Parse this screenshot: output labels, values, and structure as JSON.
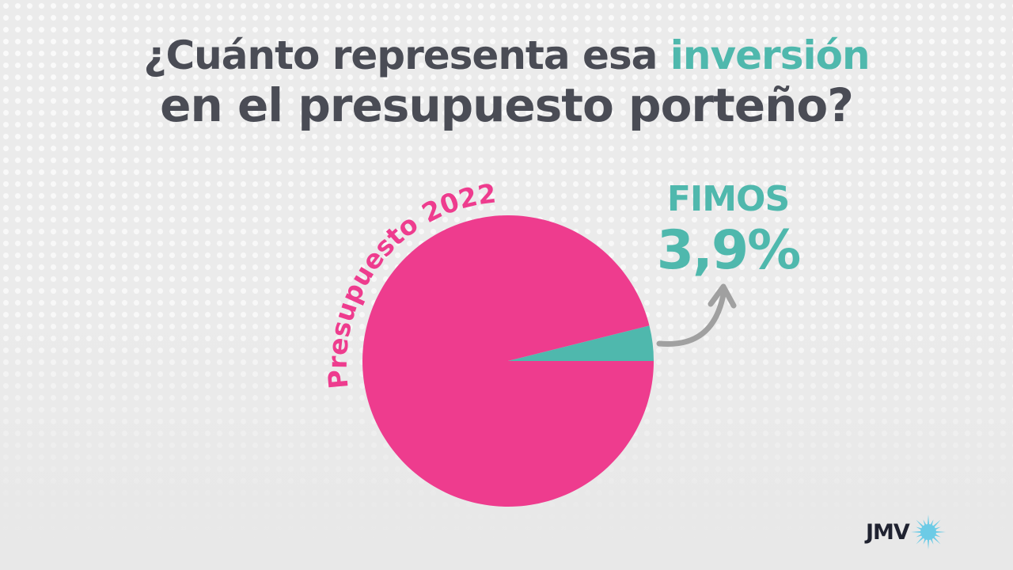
{
  "title": {
    "line1_prefix": "¿Cuánto representa esa ",
    "line1_highlight": "inversión",
    "line2": "en el presupuesto porteño?"
  },
  "colors": {
    "title": "#4a4c55",
    "highlight": "#4fb8ad",
    "pink": "#ee3c8e",
    "teal": "#4fb8ad",
    "arrow": "#a0a0a0",
    "logo_sun": "#6ccbe6"
  },
  "chart_data": {
    "type": "pie",
    "unit": "%",
    "slices": [
      {
        "label": "Presupuesto 2022",
        "value": 96.1,
        "color": "#ee3c8e"
      },
      {
        "label": "FIMOS",
        "value": 3.9,
        "display": "3,9%",
        "color": "#4fb8ad"
      }
    ]
  },
  "callout": {
    "label": "FIMOS",
    "value": "3,9%"
  },
  "logo": {
    "text": "JMV",
    "icon": "sun-icon"
  }
}
